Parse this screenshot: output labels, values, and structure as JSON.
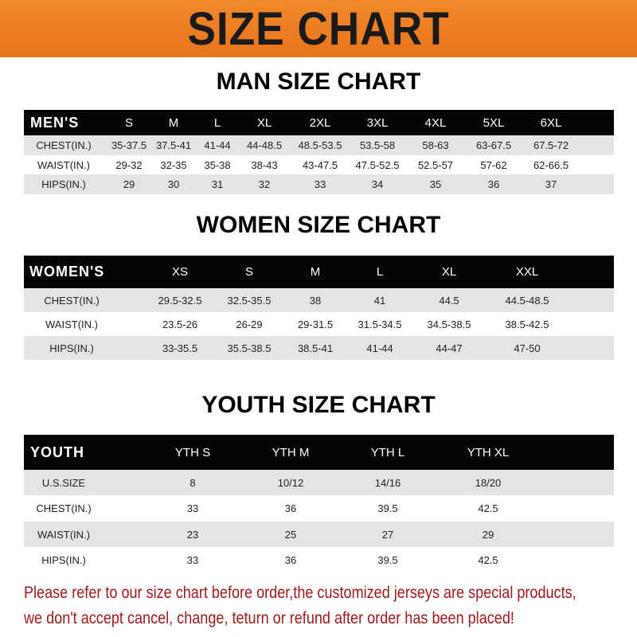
{
  "banner": {
    "title": "SIZE CHART",
    "color": "#ec7e22"
  },
  "men": {
    "title": "MAN SIZE CHART",
    "header": [
      "MEN'S",
      "S",
      "M",
      "L",
      "XL",
      "2XL",
      "3XL",
      "4XL",
      "5XL",
      "6XL"
    ],
    "rows": [
      [
        "CHEST(IN.)",
        "35-37.5",
        "37.5-41",
        "41-44",
        "44-48.5",
        "48.5-53.5",
        "53.5-58",
        "58-63",
        "63-67.5",
        "67.5-72"
      ],
      [
        "WAIST(IN.)",
        "29-32",
        "32-35",
        "35-38",
        "38-43",
        "43-47.5",
        "47.5-52.5",
        "52.5-57",
        "57-62",
        "62-66.5"
      ],
      [
        "HIPS(IN.)",
        "29",
        "30",
        "31",
        "32",
        "33",
        "34",
        "35",
        "36",
        "37"
      ]
    ]
  },
  "women": {
    "title": "WOMEN SIZE CHART",
    "header": [
      "WOMEN'S",
      "XS",
      "S",
      "M",
      "L",
      "XL",
      "XXL"
    ],
    "rows": [
      [
        "CHEST(IN.)",
        "29.5-32.5",
        "32.5-35.5",
        "38",
        "41",
        "44.5",
        "44.5-48.5"
      ],
      [
        "WAIST(IN.)",
        "23.5-26",
        "26-29",
        "29-31.5",
        "31.5-34.5",
        "34.5-38.5",
        "38.5-42.5"
      ],
      [
        "HIPS(IN.)",
        "33-35.5",
        "35.5-38.5",
        "38.5-41",
        "41-44",
        "44-47",
        "47-50"
      ]
    ]
  },
  "youth": {
    "title": "YOUTH SIZE CHART",
    "header": [
      "YOUTH",
      "YTH S",
      "YTH M",
      "YTH L",
      "YTH XL"
    ],
    "rows": [
      [
        "U.S.SIZE",
        "8",
        "10/12",
        "14/16",
        "18/20"
      ],
      [
        "CHEST(IN.)",
        "33",
        "36",
        "39.5",
        "42.5"
      ],
      [
        "WAIST(IN.)",
        "23",
        "25",
        "27",
        "29"
      ],
      [
        "HIPS(IN.)",
        "33",
        "36",
        "39.5",
        "42.5"
      ]
    ]
  },
  "notice": {
    "line1": "Please refer to our size chart before order,the customized jerseys are special products,",
    "line2": "we don't accept cancel, change, teturn or refund after order has been placed!",
    "color": "#a3191c"
  }
}
